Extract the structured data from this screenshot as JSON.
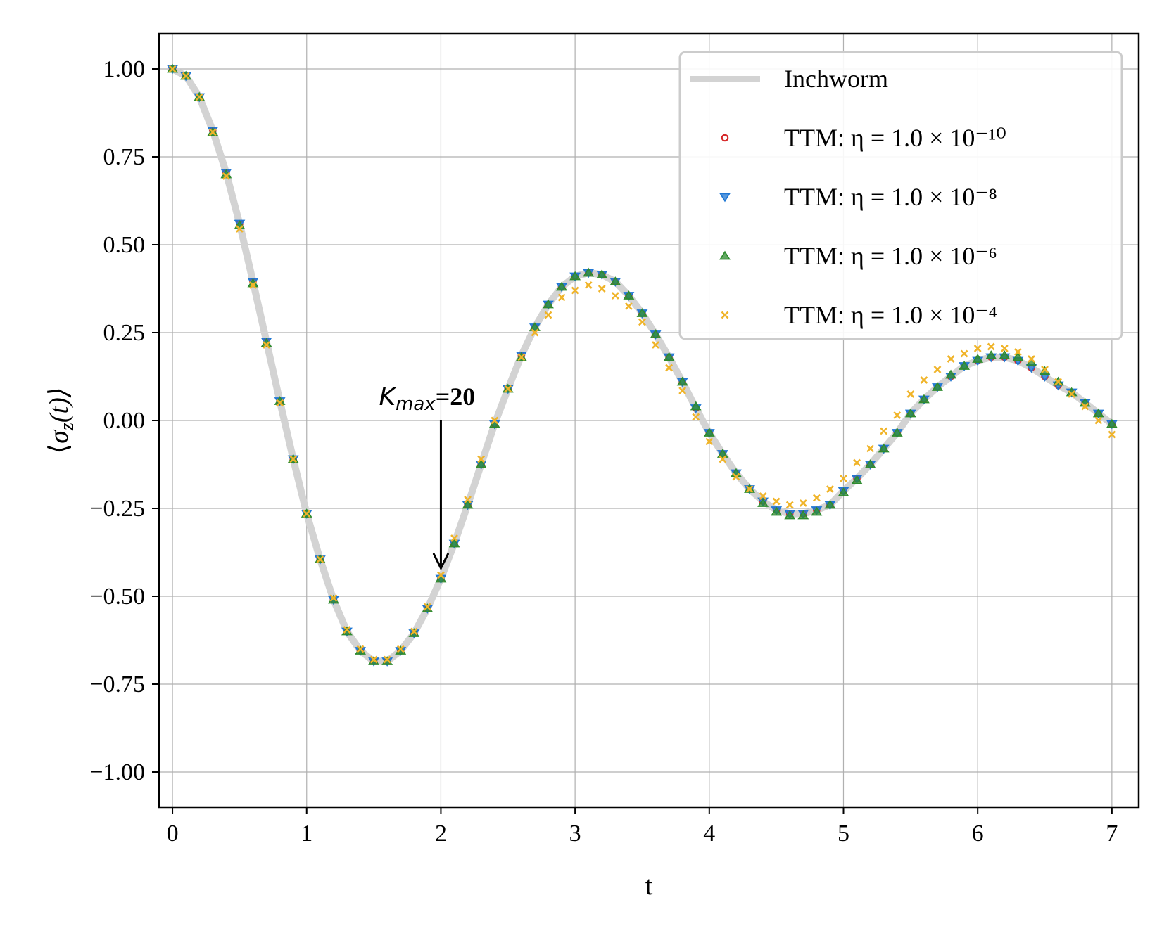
{
  "chart_data": {
    "type": "line",
    "title": "",
    "xlabel": "t",
    "ylabel": "⟨σz(t)⟩",
    "xlim": [
      -0.1,
      7.2
    ],
    "ylim": [
      -1.1,
      1.1
    ],
    "xticks": [
      0,
      1,
      2,
      3,
      4,
      5,
      6,
      7
    ],
    "xtick_labels": [
      "0",
      "1",
      "2",
      "3",
      "4",
      "5",
      "6",
      "7"
    ],
    "yticks": [
      1.0,
      0.75,
      0.5,
      0.25,
      0.0,
      -0.25,
      -0.5,
      -0.75,
      -1.0
    ],
    "ytick_labels": [
      "1.00",
      "0.75",
      "0.50",
      "0.25",
      "0.00",
      "−0.25",
      "−0.50",
      "−0.75",
      "−1.00"
    ],
    "grid": true,
    "legend_position": "top-right",
    "x": [
      0.0,
      0.1,
      0.2,
      0.3,
      0.4,
      0.5,
      0.6,
      0.7,
      0.8,
      0.9,
      1.0,
      1.1,
      1.2,
      1.3,
      1.4,
      1.5,
      1.6,
      1.7,
      1.8,
      1.9,
      2.0,
      2.1,
      2.2,
      2.3,
      2.4,
      2.5,
      2.6,
      2.7,
      2.8,
      2.9,
      3.0,
      3.1,
      3.2,
      3.3,
      3.4,
      3.5,
      3.6,
      3.7,
      3.8,
      3.9,
      4.0,
      4.1,
      4.2,
      4.3,
      4.4,
      4.5,
      4.6,
      4.7,
      4.8,
      4.9,
      5.0,
      5.1,
      5.2,
      5.3,
      5.4,
      5.5,
      5.6,
      5.7,
      5.8,
      5.9,
      6.0,
      6.1,
      6.2,
      6.3,
      6.4,
      6.5,
      6.6,
      6.7,
      6.8,
      6.9,
      7.0
    ],
    "series": [
      {
        "name": "Inchworm",
        "style": "line",
        "color": "#d3d3d3",
        "values": [
          1.0,
          0.98,
          0.92,
          0.825,
          0.705,
          0.56,
          0.395,
          0.225,
          0.055,
          -0.11,
          -0.265,
          -0.395,
          -0.51,
          -0.6,
          -0.655,
          -0.685,
          -0.685,
          -0.655,
          -0.605,
          -0.535,
          -0.45,
          -0.35,
          -0.24,
          -0.125,
          -0.01,
          0.09,
          0.185,
          0.265,
          0.33,
          0.38,
          0.41,
          0.42,
          0.415,
          0.395,
          0.355,
          0.305,
          0.245,
          0.18,
          0.11,
          0.035,
          -0.035,
          -0.095,
          -0.15,
          -0.195,
          -0.23,
          -0.255,
          -0.265,
          -0.265,
          -0.255,
          -0.24,
          -0.2,
          -0.165,
          -0.125,
          -0.08,
          -0.035,
          0.02,
          0.06,
          0.095,
          0.125,
          0.155,
          0.17,
          0.18,
          0.18,
          0.17,
          0.15,
          0.125,
          0.1,
          0.08,
          0.05,
          0.02,
          -0.01
        ]
      },
      {
        "name": "TTM: η = 1.0 × 10⁻¹⁰",
        "style": "circle",
        "color": "#d62728",
        "values": [
          1.0,
          0.98,
          0.92,
          0.825,
          0.705,
          0.56,
          0.395,
          0.225,
          0.055,
          -0.11,
          -0.265,
          -0.395,
          -0.51,
          -0.6,
          -0.655,
          -0.685,
          -0.685,
          -0.655,
          -0.605,
          -0.535,
          -0.45,
          -0.35,
          -0.24,
          -0.125,
          -0.01,
          0.09,
          0.185,
          0.265,
          0.33,
          0.38,
          0.41,
          0.42,
          0.415,
          0.395,
          0.355,
          0.305,
          0.245,
          0.18,
          0.11,
          0.035,
          -0.035,
          -0.095,
          -0.15,
          -0.195,
          -0.23,
          -0.255,
          -0.265,
          -0.265,
          -0.255,
          -0.24,
          -0.2,
          -0.165,
          -0.125,
          -0.08,
          -0.035,
          0.02,
          0.06,
          0.095,
          0.125,
          0.155,
          0.17,
          0.18,
          0.18,
          0.17,
          0.15,
          0.125,
          0.1,
          0.08,
          0.05,
          0.02,
          -0.01
        ]
      },
      {
        "name": "TTM: η = 1.0 × 10⁻⁸",
        "style": "triangle-down",
        "color": "#1f77d4",
        "values": [
          1.0,
          0.98,
          0.92,
          0.825,
          0.705,
          0.56,
          0.395,
          0.225,
          0.055,
          -0.11,
          -0.265,
          -0.395,
          -0.51,
          -0.6,
          -0.655,
          -0.685,
          -0.685,
          -0.655,
          -0.605,
          -0.535,
          -0.45,
          -0.35,
          -0.24,
          -0.125,
          -0.01,
          0.09,
          0.185,
          0.265,
          0.33,
          0.38,
          0.41,
          0.42,
          0.415,
          0.395,
          0.355,
          0.305,
          0.245,
          0.18,
          0.11,
          0.035,
          -0.035,
          -0.095,
          -0.15,
          -0.195,
          -0.23,
          -0.255,
          -0.265,
          -0.265,
          -0.255,
          -0.24,
          -0.2,
          -0.165,
          -0.125,
          -0.08,
          -0.035,
          0.02,
          0.06,
          0.095,
          0.125,
          0.155,
          0.17,
          0.18,
          0.18,
          0.17,
          0.15,
          0.125,
          0.1,
          0.08,
          0.05,
          0.02,
          -0.01
        ]
      },
      {
        "name": "TTM: η = 1.0 × 10⁻⁶",
        "style": "triangle-up",
        "color": "#2e8b2e",
        "values": [
          1.0,
          0.98,
          0.92,
          0.82,
          0.7,
          0.555,
          0.39,
          0.22,
          0.055,
          -0.11,
          -0.265,
          -0.395,
          -0.51,
          -0.6,
          -0.655,
          -0.685,
          -0.685,
          -0.655,
          -0.605,
          -0.535,
          -0.45,
          -0.35,
          -0.24,
          -0.125,
          -0.01,
          0.09,
          0.18,
          0.265,
          0.33,
          0.38,
          0.41,
          0.42,
          0.415,
          0.395,
          0.355,
          0.305,
          0.245,
          0.18,
          0.11,
          0.04,
          -0.035,
          -0.095,
          -0.15,
          -0.195,
          -0.235,
          -0.26,
          -0.27,
          -0.27,
          -0.26,
          -0.24,
          -0.205,
          -0.17,
          -0.125,
          -0.08,
          -0.035,
          0.02,
          0.06,
          0.095,
          0.13,
          0.155,
          0.175,
          0.185,
          0.185,
          0.18,
          0.165,
          0.14,
          0.11,
          0.08,
          0.05,
          0.02,
          -0.01
        ]
      },
      {
        "name": "TTM: η = 1.0 × 10⁻⁴",
        "style": "x",
        "color": "#f0b429",
        "values": [
          1.0,
          0.98,
          0.92,
          0.82,
          0.695,
          0.545,
          0.385,
          0.215,
          0.05,
          -0.11,
          -0.265,
          -0.395,
          -0.505,
          -0.595,
          -0.65,
          -0.68,
          -0.68,
          -0.65,
          -0.6,
          -0.53,
          -0.44,
          -0.335,
          -0.225,
          -0.11,
          0.0,
          0.09,
          0.18,
          0.25,
          0.3,
          0.35,
          0.37,
          0.385,
          0.375,
          0.355,
          0.325,
          0.28,
          0.215,
          0.15,
          0.085,
          0.01,
          -0.06,
          -0.11,
          -0.16,
          -0.195,
          -0.215,
          -0.23,
          -0.24,
          -0.235,
          -0.22,
          -0.195,
          -0.165,
          -0.12,
          -0.08,
          -0.03,
          0.015,
          0.075,
          0.115,
          0.145,
          0.175,
          0.19,
          0.205,
          0.21,
          0.205,
          0.195,
          0.175,
          0.145,
          0.11,
          0.075,
          0.04,
          0.0,
          -0.04
        ]
      }
    ],
    "annotations": [
      {
        "text": "K_max=20",
        "main": "K",
        "sub": "max",
        "rest": "=20",
        "arrow_x": 2.0,
        "arrow_from_y": 0.0,
        "arrow_to_y": -0.42
      }
    ]
  }
}
